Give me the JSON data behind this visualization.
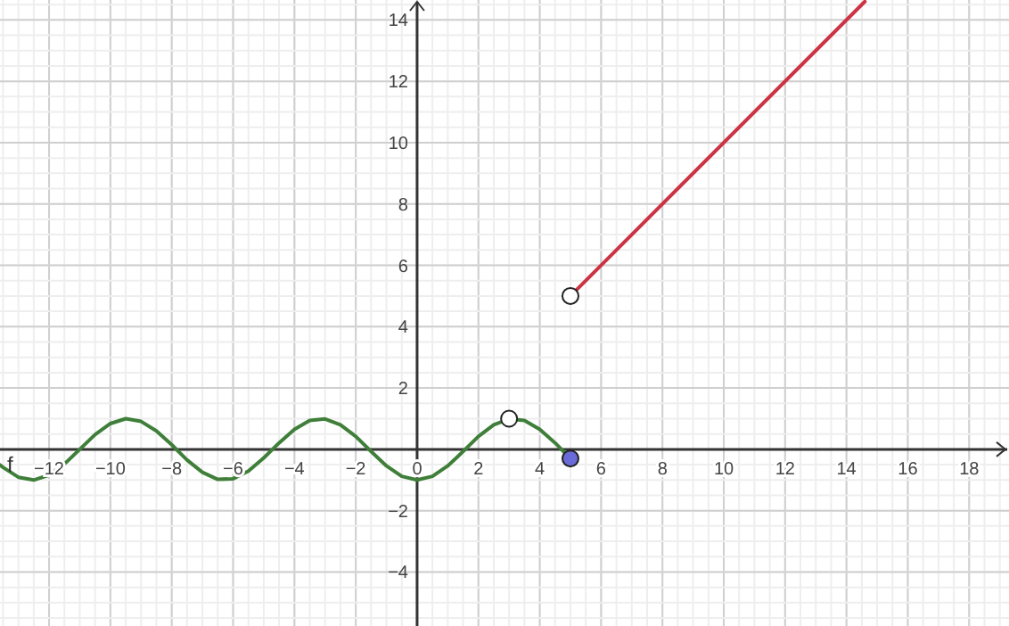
{
  "chart_data": {
    "type": "line",
    "xlim": [
      -13.6,
      19.3
    ],
    "ylim": [
      -5.76,
      14.65
    ],
    "xticks": [
      -12,
      -10,
      -8,
      -6,
      -4,
      -2,
      0,
      2,
      4,
      6,
      8,
      10,
      12,
      14,
      16,
      18
    ],
    "yticks": [
      -4,
      -2,
      2,
      4,
      6,
      8,
      10,
      12,
      14
    ],
    "grid": true,
    "line_style": "solid",
    "series": [
      {
        "name": "f",
        "color": "#3f7f3a",
        "x": [
          -13.6,
          -13.5,
          -13,
          -12.5,
          -12,
          -11.5,
          -11,
          -10.5,
          -10,
          -9.5,
          -9,
          -8.5,
          -8,
          -7.5,
          -7,
          -6.5,
          -6,
          -5.5,
          -5,
          -4.5,
          -4,
          -3.5,
          -3,
          -2.5,
          -2,
          -1.5,
          -1,
          -0.5,
          0,
          0.5,
          1,
          1.5,
          2,
          2.5,
          3,
          3.5,
          4,
          4.5,
          5
        ],
        "values": [
          -0.51,
          -0.59,
          -0.91,
          -1,
          -0.84,
          -0.48,
          0,
          0.48,
          0.84,
          1,
          0.91,
          0.6,
          0.15,
          -0.35,
          -0.75,
          -0.98,
          -0.96,
          -0.71,
          -0.28,
          0.21,
          0.65,
          0.94,
          0.99,
          0.8,
          0.42,
          -0.07,
          -0.54,
          -0.88,
          -1,
          -0.88,
          -0.54,
          -0.07,
          0.42,
          0.8,
          0.99,
          0.94,
          0.65,
          0.21,
          -0.3
        ]
      },
      {
        "color": "#cc3344",
        "x": [
          5,
          14.6
        ],
        "values": [
          5,
          14.6
        ]
      },
      {
        "type": "scatter",
        "marker": "circle",
        "color": "#ffffff",
        "x": [
          3,
          5
        ],
        "values": [
          1,
          5
        ]
      },
      {
        "type": "scatter",
        "marker": "circle",
        "color": "#6a6ad8",
        "x": [
          5
        ],
        "values": [
          -0.3
        ]
      }
    ]
  }
}
